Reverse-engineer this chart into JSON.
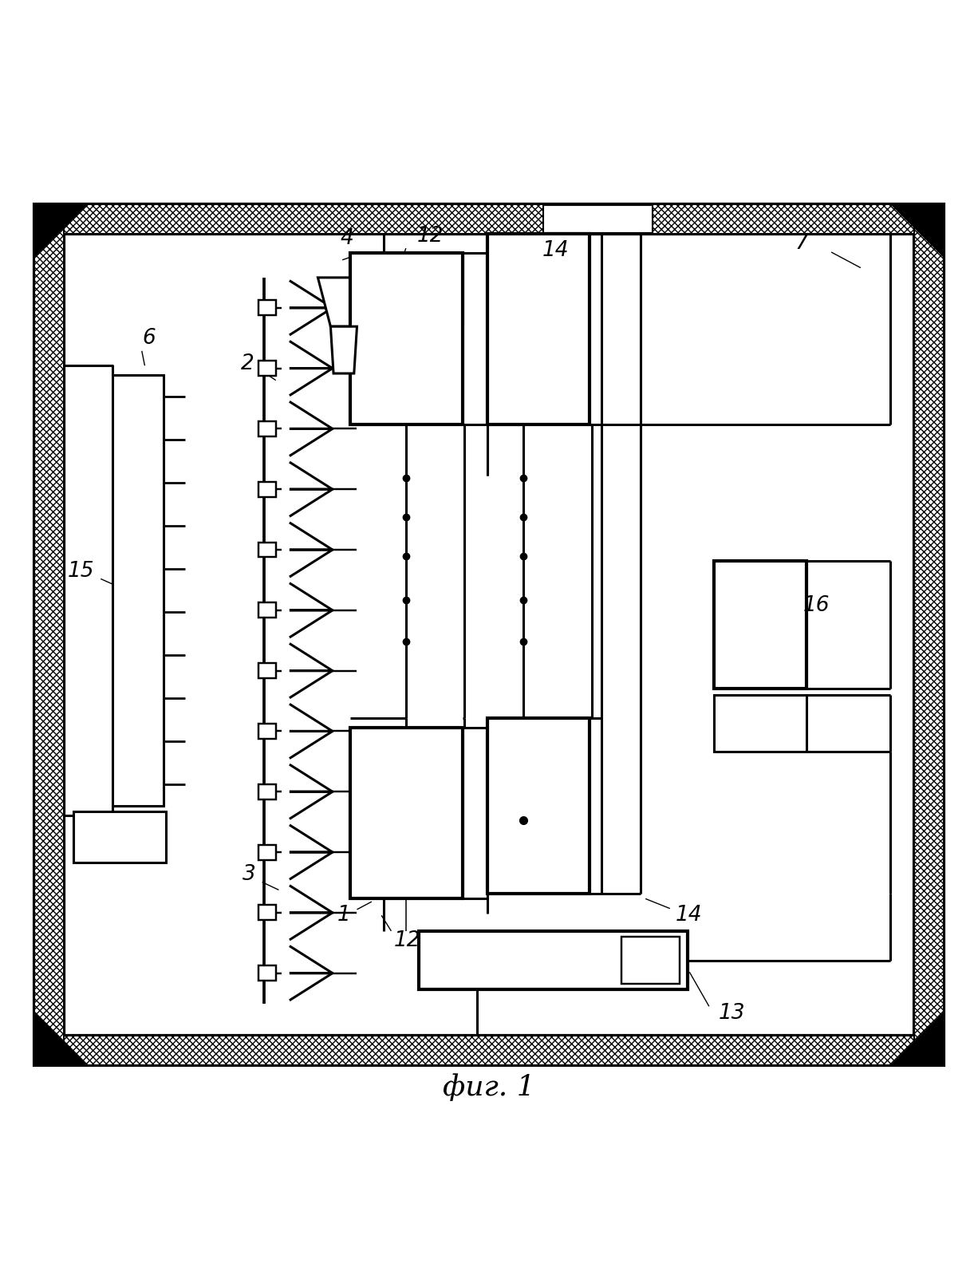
{
  "fig_width": 12.26,
  "fig_height": 16.03,
  "dpi": 100,
  "bg": "#ffffff",
  "lw": 2.2,
  "lw_thick": 3.0,
  "frame": {
    "outer": [
      0.04,
      0.07,
      0.92,
      0.88
    ],
    "hatch_thick": 0.032
  },
  "label_fontsize": 19,
  "title": "фиг. 1"
}
